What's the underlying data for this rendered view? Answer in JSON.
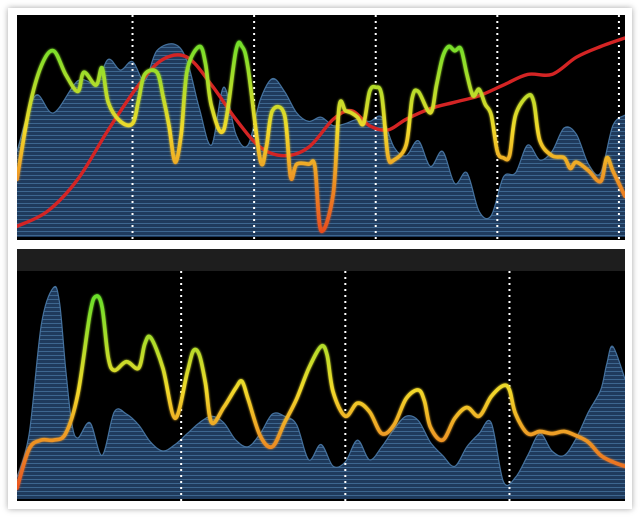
{
  "colors": {
    "background": "#000000",
    "area_fill": "#1f3a5c",
    "area_stroke": "#4a7aa8",
    "trend_line": "#d42424",
    "gradient_high": "#55e02a",
    "gradient_mid": "#f2d92a",
    "gradient_low": "#e8451e",
    "time_marker": "#ffffff"
  },
  "chart_data": [
    {
      "type": "line",
      "title": "",
      "xlabel": "",
      "ylabel": "",
      "xlim": [
        0,
        100
      ],
      "ylim": [
        0,
        100
      ],
      "grid": false,
      "legend": "none",
      "time_markers": [
        19,
        39,
        59,
        79,
        99
      ],
      "series": [
        {
          "role": "filled-area",
          "x": [
            0,
            3,
            6,
            10,
            13,
            15,
            17,
            19,
            21,
            23,
            26,
            28,
            30,
            32,
            34,
            36,
            38,
            40,
            42,
            44,
            46,
            48,
            50,
            52,
            54,
            56,
            58,
            60,
            62,
            64,
            66,
            68,
            70,
            72,
            74,
            76,
            78,
            80,
            82,
            84,
            86,
            88,
            90,
            92,
            94,
            96,
            98,
            100
          ],
          "y": [
            40,
            66,
            58,
            73,
            72,
            83,
            78,
            82,
            73,
            87,
            90,
            82,
            60,
            43,
            70,
            48,
            43,
            64,
            74,
            68,
            58,
            54,
            56,
            52,
            53,
            55,
            54,
            56,
            42,
            38,
            45,
            33,
            40,
            25,
            30,
            12,
            10,
            28,
            30,
            43,
            36,
            40,
            51,
            48,
            34,
            30,
            52,
            57
          ]
        },
        {
          "role": "trend-line",
          "x": [
            0,
            5,
            10,
            15,
            20,
            24,
            28,
            32,
            36,
            40,
            44,
            48,
            52,
            55,
            58,
            61,
            64,
            68,
            72,
            76,
            80,
            84,
            88,
            92,
            96,
            100
          ],
          "y": [
            5,
            12,
            27,
            50,
            71,
            83,
            84,
            71,
            55,
            42,
            38,
            42,
            55,
            59,
            52,
            50,
            55,
            60,
            63,
            66,
            71,
            76,
            76,
            84,
            89,
            93
          ]
        },
        {
          "role": "gradient-line",
          "x": [
            0,
            2,
            4,
            6,
            8,
            10,
            11,
            13,
            14,
            15,
            17,
            19,
            20,
            21,
            23,
            24,
            25,
            26,
            27,
            28,
            30,
            31,
            32,
            34,
            36,
            37,
            38,
            40,
            41,
            42,
            44,
            45,
            46,
            48,
            49,
            50,
            52,
            53,
            54,
            55,
            56,
            57,
            58,
            59,
            60,
            61,
            62,
            64,
            65,
            66,
            68,
            69,
            70,
            71,
            72,
            73,
            74,
            75,
            76,
            77,
            78,
            79,
            80,
            81,
            82,
            84,
            85,
            86,
            88,
            90,
            91,
            92,
            94,
            96,
            97,
            98,
            100
          ],
          "y": [
            27,
            60,
            80,
            87,
            76,
            68,
            77,
            71,
            79,
            63,
            54,
            53,
            64,
            76,
            77,
            66,
            52,
            35,
            48,
            78,
            89,
            81,
            61,
            50,
            87,
            89,
            79,
            36,
            42,
            59,
            57,
            28,
            34,
            34,
            33,
            3,
            20,
            61,
            59,
            58,
            56,
            53,
            68,
            70,
            66,
            38,
            36,
            43,
            65,
            68,
            58,
            71,
            84,
            89,
            87,
            88,
            76,
            66,
            69,
            62,
            57,
            40,
            37,
            38,
            57,
            66,
            63,
            45,
            38,
            37,
            32,
            35,
            31,
            26,
            37,
            31,
            19
          ]
        }
      ]
    },
    {
      "type": "line",
      "title": "",
      "xlabel": "",
      "ylabel": "",
      "xlim": [
        0,
        100
      ],
      "ylim": [
        0,
        100
      ],
      "grid": false,
      "legend": "none",
      "time_markers": [
        27,
        54,
        81
      ],
      "series": [
        {
          "role": "filled-area",
          "x": [
            0,
            2,
            4,
            6,
            7,
            8,
            9,
            10,
            12,
            14,
            16,
            18,
            20,
            22,
            24,
            26,
            28,
            30,
            32,
            34,
            36,
            38,
            40,
            42,
            44,
            46,
            48,
            50,
            52,
            54,
            56,
            58,
            60,
            62,
            64,
            66,
            68,
            70,
            72,
            74,
            76,
            78,
            80,
            82,
            84,
            86,
            88,
            90,
            92,
            94,
            96,
            97,
            98,
            100
          ],
          "y": [
            10,
            30,
            80,
            97,
            90,
            60,
            35,
            28,
            35,
            20,
            40,
            39,
            34,
            26,
            22,
            25,
            30,
            35,
            38,
            35,
            27,
            24,
            30,
            39,
            38,
            34,
            18,
            25,
            15,
            17,
            27,
            18,
            24,
            32,
            38,
            36,
            26,
            20,
            15,
            24,
            30,
            35,
            8,
            10,
            20,
            30,
            22,
            20,
            28,
            40,
            50,
            62,
            70,
            55
          ]
        },
        {
          "role": "gradient-line",
          "x": [
            0,
            2,
            4,
            6,
            8,
            10,
            12,
            13,
            14,
            15,
            16,
            18,
            20,
            21,
            22,
            24,
            26,
            28,
            29,
            30,
            31,
            32,
            34,
            36,
            37,
            38,
            40,
            42,
            44,
            46,
            48,
            50,
            51,
            52,
            54,
            56,
            58,
            60,
            62,
            64,
            66,
            67,
            68,
            70,
            72,
            74,
            76,
            78,
            80,
            81,
            82,
            84,
            86,
            88,
            90,
            92,
            94,
            96,
            98,
            100
          ],
          "y": [
            5,
            23,
            27,
            27,
            30,
            48,
            85,
            93,
            88,
            65,
            59,
            63,
            60,
            71,
            74,
            60,
            37,
            58,
            68,
            66,
            53,
            35,
            42,
            51,
            54,
            46,
            29,
            24,
            35,
            46,
            60,
            70,
            66,
            49,
            38,
            44,
            40,
            30,
            34,
            46,
            50,
            45,
            33,
            27,
            37,
            42,
            38,
            47,
            52,
            50,
            39,
            30,
            31,
            30,
            31,
            29,
            26,
            20,
            17,
            15
          ]
        }
      ]
    }
  ]
}
